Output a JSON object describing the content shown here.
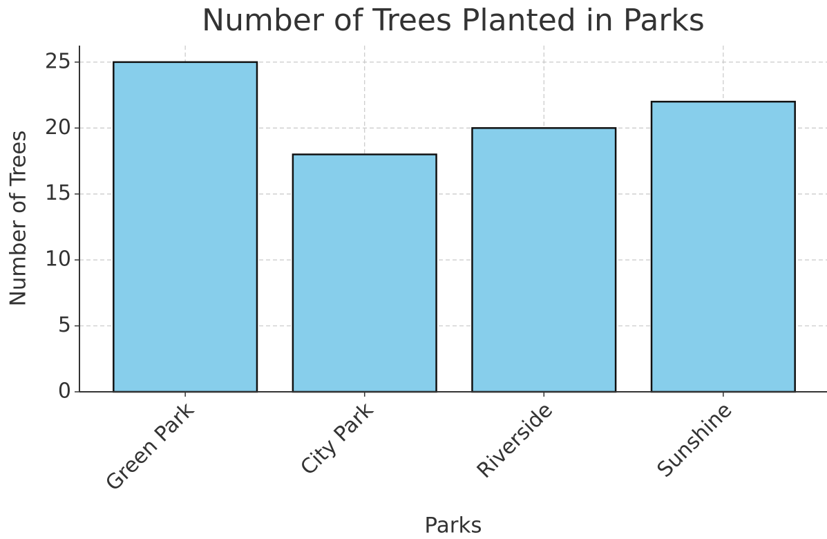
{
  "chart_data": {
    "type": "bar",
    "title": "Number of Trees Planted in Parks",
    "x_label": "Parks",
    "y_label": "Number of Trees",
    "categories": [
      "Green Park",
      "City Park",
      "Riverside",
      "Sunshine"
    ],
    "values": [
      25,
      18,
      20,
      22
    ],
    "color": "#87ceeb",
    "ylim": [
      0,
      26.25
    ],
    "yticks": [
      0,
      5,
      10,
      15,
      20,
      25
    ],
    "grid": true
  }
}
